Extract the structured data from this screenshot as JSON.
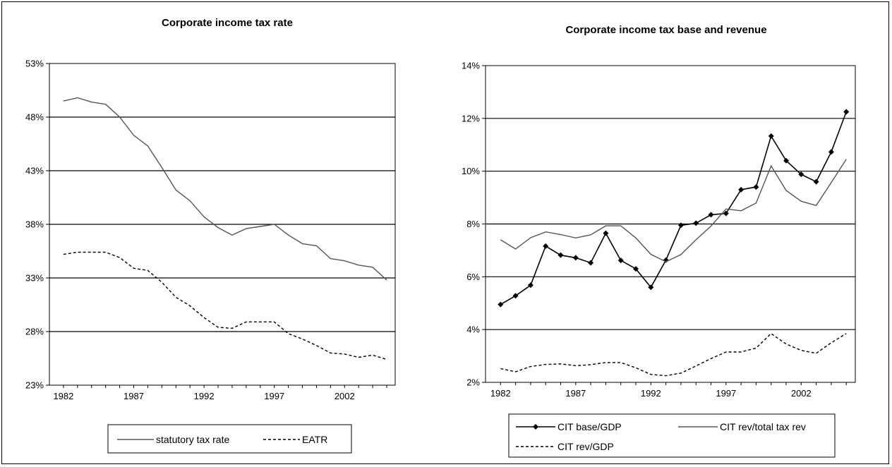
{
  "chart_data": [
    {
      "type": "line",
      "title": "Corporate income tax rate",
      "xlabel": "",
      "ylabel": "",
      "x": [
        1982,
        1983,
        1984,
        1985,
        1986,
        1987,
        1988,
        1989,
        1990,
        1991,
        1992,
        1993,
        1994,
        1995,
        1996,
        1997,
        1998,
        1999,
        2000,
        2001,
        2002,
        2003,
        2004,
        2005
      ],
      "xticks": [
        "1982",
        "1987",
        "1992",
        "1997",
        "2002"
      ],
      "ylim": [
        23,
        53
      ],
      "yticks": [
        "23%",
        "28%",
        "33%",
        "38%",
        "43%",
        "48%",
        "53%"
      ],
      "grid": "horizontal",
      "legend_position": "bottom",
      "series": [
        {
          "name": "statutory tax rate",
          "style": "solid",
          "values": [
            49.5,
            49.8,
            49.4,
            49.2,
            48.0,
            46.3,
            45.3,
            43.3,
            41.2,
            40.2,
            38.7,
            37.7,
            37.0,
            37.6,
            37.8,
            38.0,
            37.0,
            36.2,
            36.0,
            34.8,
            34.6,
            34.2,
            34.0,
            32.8
          ]
        },
        {
          "name": "EATR",
          "style": "dashed",
          "values": [
            35.2,
            35.4,
            35.4,
            35.4,
            34.9,
            33.9,
            33.7,
            32.6,
            31.2,
            30.4,
            29.3,
            28.4,
            28.3,
            28.9,
            28.9,
            28.9,
            27.8,
            27.3,
            26.7,
            26.0,
            25.9,
            25.6,
            25.8,
            25.4
          ]
        }
      ]
    },
    {
      "type": "line",
      "title": "Corporate income tax base and revenue",
      "xlabel": "",
      "ylabel": "",
      "x": [
        1982,
        1983,
        1984,
        1985,
        1986,
        1987,
        1988,
        1989,
        1990,
        1991,
        1992,
        1993,
        1994,
        1995,
        1996,
        1997,
        1998,
        1999,
        2000,
        2001,
        2002,
        2003,
        2004,
        2005
      ],
      "xticks": [
        "1982",
        "1987",
        "1992",
        "1997",
        "2002"
      ],
      "ylim": [
        2,
        14
      ],
      "yticks": [
        "2%",
        "4%",
        "6%",
        "8%",
        "10%",
        "12%",
        "14%"
      ],
      "grid": "horizontal",
      "legend_position": "bottom",
      "series": [
        {
          "name": "CIT base/GDP",
          "style": "solid-markers",
          "values": [
            4.95,
            5.28,
            5.68,
            7.16,
            6.82,
            6.72,
            6.53,
            7.65,
            6.62,
            6.3,
            5.6,
            6.63,
            7.95,
            8.03,
            8.35,
            8.4,
            9.3,
            9.4,
            11.33,
            10.4,
            9.88,
            9.6,
            10.73,
            12.25
          ]
        },
        {
          "name": "CIT rev/total tax rev",
          "style": "solid",
          "values": [
            7.4,
            7.05,
            7.48,
            7.7,
            7.6,
            7.47,
            7.59,
            7.93,
            7.93,
            7.47,
            6.85,
            6.57,
            6.84,
            7.4,
            7.92,
            8.57,
            8.5,
            8.79,
            10.2,
            9.27,
            8.86,
            8.7,
            9.57,
            10.45
          ]
        },
        {
          "name": "CIT rev/GDP",
          "style": "dashed",
          "values": [
            2.52,
            2.4,
            2.6,
            2.68,
            2.7,
            2.63,
            2.67,
            2.75,
            2.75,
            2.55,
            2.3,
            2.25,
            2.35,
            2.62,
            2.9,
            3.15,
            3.15,
            3.3,
            3.85,
            3.45,
            3.21,
            3.1,
            3.5,
            3.85
          ]
        }
      ]
    }
  ]
}
